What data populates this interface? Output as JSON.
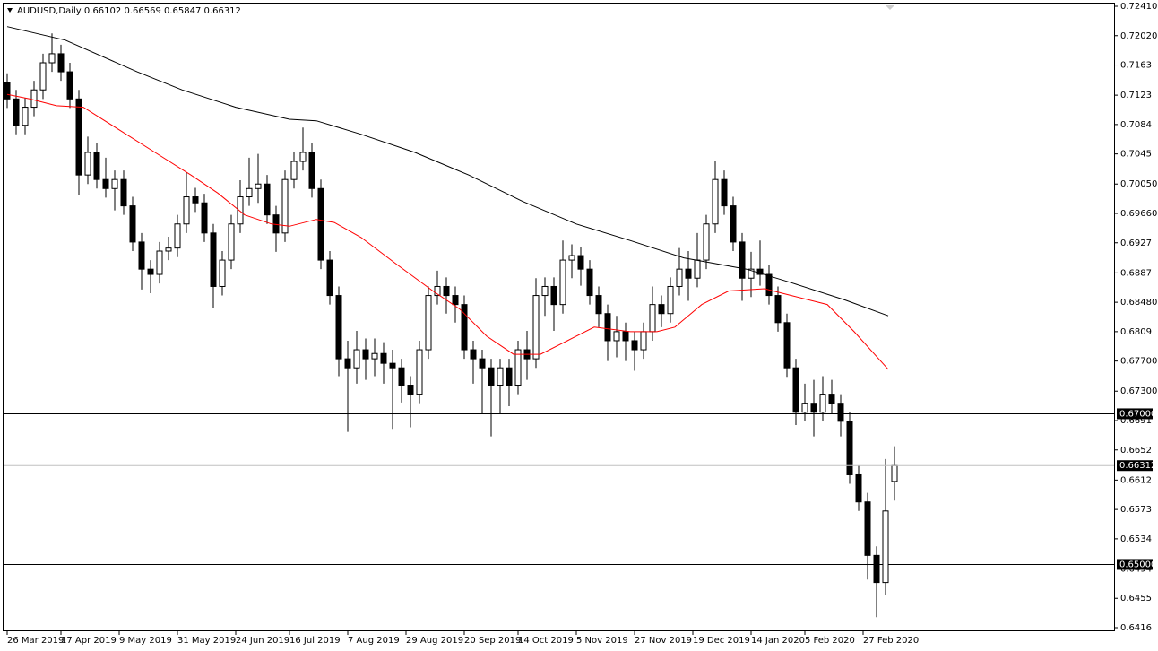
{
  "chart_data": {
    "type": "candlestick",
    "symbol": "AUDUSD,Daily",
    "open": [
      0.714,
      0.7118,
      0.7083,
      0.7107,
      0.713,
      0.7166,
      0.7178,
      0.7154,
      0.7118,
      0.7017,
      0.7047,
      0.7011,
      0.6999,
      0.7011,
      0.6976,
      0.6928,
      0.6892,
      0.6885,
      0.6916,
      0.692,
      0.6952,
      0.6988,
      0.698,
      0.694,
      0.6869,
      0.6904,
      0.6952,
      0.6988,
      0.6999,
      0.7005,
      0.6964,
      0.694,
      0.7011,
      0.7035,
      0.7047,
      0.6999,
      0.6904,
      0.6857,
      0.6773,
      0.6761,
      0.6785,
      0.6773,
      0.678,
      0.6767,
      0.6761,
      0.6738,
      0.6726,
      0.6785,
      0.6857,
      0.6869,
      0.6857,
      0.6845,
      0.6785,
      0.6773,
      0.6761,
      0.6738,
      0.6761,
      0.6738,
      0.6785,
      0.6773,
      0.6857,
      0.6869,
      0.6845,
      0.6904,
      0.691,
      0.6892,
      0.6857,
      0.6833,
      0.6797,
      0.6809,
      0.6797,
      0.6785,
      0.6809,
      0.6845,
      0.6833,
      0.6869,
      0.6892,
      0.688,
      0.6904,
      0.6952,
      0.7011,
      0.6976,
      0.6928,
      0.688,
      0.6892,
      0.6885,
      0.6857,
      0.6821,
      0.6761,
      0.6702,
      0.6714,
      0.6702,
      0.6726,
      0.6714,
      0.669,
      0.6619,
      0.6583,
      0.6512,
      0.6476,
      0.66102
    ],
    "high": [
      0.7152,
      0.713,
      0.7119,
      0.7142,
      0.7178,
      0.7205,
      0.719,
      0.7166,
      0.713,
      0.7068,
      0.7059,
      0.704,
      0.7023,
      0.7023,
      0.6988,
      0.694,
      0.6904,
      0.6928,
      0.6935,
      0.6964,
      0.702,
      0.7,
      0.6992,
      0.6952,
      0.6916,
      0.6964,
      0.701,
      0.704,
      0.7045,
      0.7017,
      0.6976,
      0.7023,
      0.7047,
      0.708,
      0.7059,
      0.7011,
      0.6916,
      0.6869,
      0.6797,
      0.681,
      0.68,
      0.68,
      0.6795,
      0.6785,
      0.6773,
      0.675,
      0.6797,
      0.6869,
      0.689,
      0.6881,
      0.6869,
      0.6857,
      0.6797,
      0.6785,
      0.6773,
      0.6773,
      0.6773,
      0.6797,
      0.681,
      0.688,
      0.6881,
      0.6881,
      0.693,
      0.6925,
      0.6922,
      0.6904,
      0.6869,
      0.6845,
      0.683,
      0.6821,
      0.6809,
      0.6821,
      0.6869,
      0.6857,
      0.6881,
      0.692,
      0.6916,
      0.694,
      0.6964,
      0.7035,
      0.7023,
      0.6988,
      0.694,
      0.6915,
      0.693,
      0.6897,
      0.6869,
      0.6833,
      0.6773,
      0.674,
      0.6745,
      0.675,
      0.6745,
      0.6726,
      0.6702,
      0.6631,
      0.6595,
      0.6524,
      0.664,
      0.66569
    ],
    "low": [
      0.7106,
      0.7071,
      0.7071,
      0.7095,
      0.7118,
      0.7154,
      0.7142,
      0.7106,
      0.699,
      0.7005,
      0.6999,
      0.6987,
      0.697,
      0.6964,
      0.6916,
      0.6865,
      0.686,
      0.6873,
      0.6904,
      0.6908,
      0.694,
      0.6968,
      0.6928,
      0.684,
      0.6857,
      0.6892,
      0.694,
      0.6976,
      0.698,
      0.6952,
      0.6915,
      0.6928,
      0.6999,
      0.7023,
      0.6987,
      0.6892,
      0.6845,
      0.675,
      0.6676,
      0.674,
      0.6745,
      0.675,
      0.674,
      0.668,
      0.6715,
      0.6682,
      0.6714,
      0.6773,
      0.6845,
      0.6833,
      0.6821,
      0.6773,
      0.674,
      0.67,
      0.667,
      0.67,
      0.671,
      0.6726,
      0.6745,
      0.6761,
      0.683,
      0.681,
      0.6833,
      0.688,
      0.687,
      0.6845,
      0.6815,
      0.677,
      0.6775,
      0.677,
      0.6757,
      0.6773,
      0.6797,
      0.6815,
      0.6821,
      0.6857,
      0.685,
      0.6868,
      0.6892,
      0.694,
      0.6964,
      0.6916,
      0.685,
      0.6855,
      0.687,
      0.6845,
      0.6809,
      0.6749,
      0.6685,
      0.669,
      0.667,
      0.669,
      0.67,
      0.667,
      0.6607,
      0.6571,
      0.648,
      0.643,
      0.646,
      0.65847
    ],
    "close": [
      0.7118,
      0.7083,
      0.7107,
      0.713,
      0.7166,
      0.7178,
      0.7154,
      0.7118,
      0.7017,
      0.7047,
      0.7011,
      0.6999,
      0.7011,
      0.6976,
      0.6928,
      0.6892,
      0.6885,
      0.6916,
      0.692,
      0.6952,
      0.6988,
      0.698,
      0.694,
      0.6869,
      0.6904,
      0.6952,
      0.6988,
      0.6999,
      0.7005,
      0.6964,
      0.694,
      0.7011,
      0.7035,
      0.7047,
      0.6999,
      0.6904,
      0.6857,
      0.6773,
      0.6761,
      0.6785,
      0.6773,
      0.678,
      0.6767,
      0.6761,
      0.6738,
      0.6726,
      0.6785,
      0.6857,
      0.6869,
      0.6857,
      0.6845,
      0.6785,
      0.6773,
      0.6761,
      0.6738,
      0.6761,
      0.6738,
      0.6785,
      0.6773,
      0.6857,
      0.6869,
      0.6845,
      0.6904,
      0.691,
      0.6892,
      0.6857,
      0.6833,
      0.6797,
      0.6809,
      0.6797,
      0.6785,
      0.6809,
      0.6845,
      0.6833,
      0.6869,
      0.6892,
      0.688,
      0.6904,
      0.6952,
      0.7011,
      0.6976,
      0.6928,
      0.688,
      0.6892,
      0.6885,
      0.6857,
      0.6821,
      0.6761,
      0.6702,
      0.6714,
      0.6702,
      0.6726,
      0.6714,
      0.669,
      0.6619,
      0.6583,
      0.6512,
      0.6476,
      0.6571,
      0.66312
    ],
    "series": [
      {
        "color": "#000000",
        "x": [
          0,
          6.5,
          14.5,
          19.5,
          25.5,
          31.5,
          34.5,
          39.5,
          45.5,
          51.5,
          57.5,
          63.5,
          69.5,
          75.5,
          82.5,
          87.5,
          93.5,
          98.3
        ],
        "values": [
          0.7214,
          0.7196,
          0.7154,
          0.713,
          0.7107,
          0.7091,
          0.7089,
          0.7071,
          0.7047,
          0.7017,
          0.6982,
          0.6952,
          0.693,
          0.6907,
          0.6892,
          0.6874,
          0.6851,
          0.683
        ]
      },
      {
        "color": "#ff0000",
        "x": [
          0,
          2.5,
          5.5,
          8.5,
          12.5,
          16.5,
          20.5,
          23.5,
          26.5,
          29.5,
          31.5,
          34.5,
          36.5,
          39.5,
          43.5,
          47.5,
          50.5,
          53.5,
          56.5,
          59.5,
          62.5,
          65.5,
          69.5,
          72.5,
          74.5,
          77.5,
          80.5,
          84.5,
          87.5,
          91.5,
          94.5,
          98.3
        ],
        "values": [
          0.7124,
          0.7118,
          0.7109,
          0.7107,
          0.7077,
          0.7047,
          0.7017,
          0.6993,
          0.6964,
          0.6952,
          0.6949,
          0.6958,
          0.6954,
          0.6934,
          0.6898,
          0.6863,
          0.6839,
          0.6803,
          0.6779,
          0.6779,
          0.6797,
          0.6815,
          0.6809,
          0.6809,
          0.6815,
          0.6845,
          0.6863,
          0.6866,
          0.6857,
          0.6845,
          0.6809,
          0.6759
        ]
      }
    ],
    "levels": [
      {
        "value": 0.67,
        "label": "0.67000"
      },
      {
        "value": 0.65,
        "label": "0.65000"
      }
    ],
    "ylim": [
      0.6416,
      0.7241
    ],
    "yticks": [
      {
        "value": 0.7241,
        "label": "0.72410"
      },
      {
        "value": 0.7202,
        "label": "0.72020"
      },
      0.7163,
      0.7123,
      0.7084,
      0.7045,
      {
        "value": 0.7005,
        "label": "0.70050"
      },
      {
        "value": 0.6966,
        "label": "0.69660"
      },
      0.6927,
      0.6887,
      {
        "value": 0.6848,
        "label": "0.68480"
      },
      0.6809,
      {
        "value": 0.677,
        "label": "0.67700"
      },
      {
        "value": 0.673,
        "label": "0.67300"
      },
      0.6691,
      0.6652,
      0.6612,
      0.6573,
      0.6534,
      0.6494,
      0.6455,
      0.6416
    ],
    "xlim": [
      0,
      123.5
    ],
    "xticks": [
      {
        "value": 0,
        "label": "26 Mar 2019"
      },
      {
        "value": 6,
        "label": "17 Apr 2019"
      },
      {
        "value": 12.5,
        "label": "9 May 2019"
      },
      {
        "value": 19,
        "label": "31 May 2019"
      },
      {
        "value": 25.5,
        "label": "24 Jun 2019"
      },
      {
        "value": 31.5,
        "label": "16 Jul 2019"
      },
      {
        "value": 38,
        "label": "7 Aug 2019"
      },
      {
        "value": 44.5,
        "label": "29 Aug 2019"
      },
      {
        "value": 51,
        "label": "20 Sep 2019"
      },
      {
        "value": 57,
        "label": "14 Oct 2019"
      },
      {
        "value": 63.5,
        "label": "5 Nov 2019"
      },
      {
        "value": 70,
        "label": "27 Nov 2019"
      },
      {
        "value": 76.5,
        "label": "19 Dec 2019"
      },
      {
        "value": 83,
        "label": "14 Jan 2020"
      },
      {
        "value": 89,
        "label": "5 Feb 2020"
      },
      {
        "value": 95.5,
        "label": "27 Feb 2020"
      }
    ]
  }
}
